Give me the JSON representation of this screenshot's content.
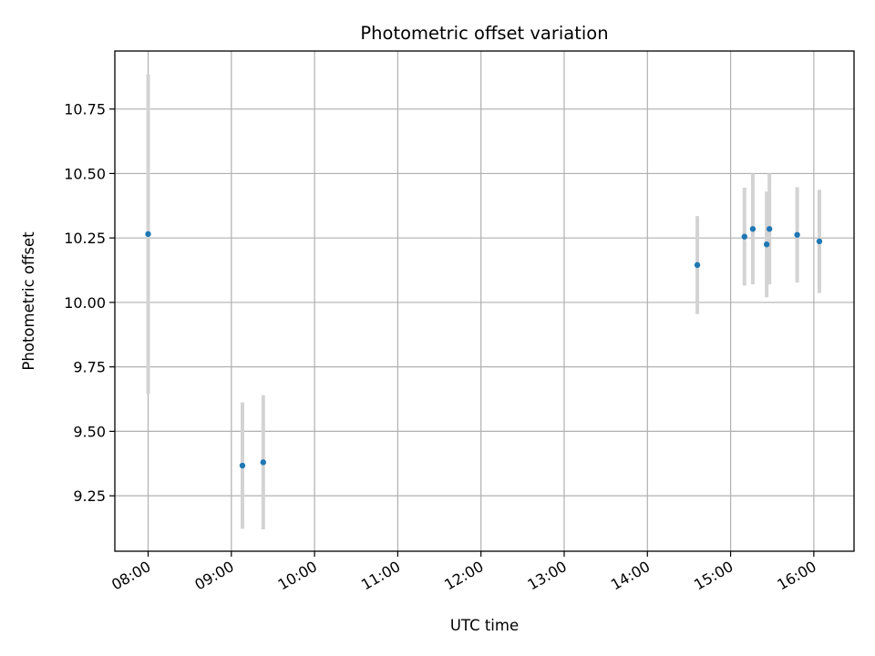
{
  "chart_data": {
    "type": "scatter",
    "title": "Photometric offset variation",
    "xlabel": "UTC time",
    "ylabel": "Photometric offset",
    "x_axis_type": "time",
    "xlim": [
      "07:36",
      "16:29"
    ],
    "ylim": [
      9.035,
      10.975
    ],
    "x_ticks": [
      "08:00",
      "09:00",
      "10:00",
      "11:00",
      "12:00",
      "13:00",
      "14:00",
      "15:00",
      "16:00"
    ],
    "y_ticks": [
      "9.25",
      "9.50",
      "9.75",
      "10.00",
      "10.25",
      "10.50",
      "10.75"
    ],
    "grid": true,
    "marker_color": "#1f77b4",
    "errorbar_color": "#d3d3d3",
    "points": [
      {
        "x": "08:00",
        "y": 10.265,
        "err": 0.62
      },
      {
        "x": "09:08",
        "y": 9.367,
        "err": 0.245
      },
      {
        "x": "09:23",
        "y": 9.38,
        "err": 0.26
      },
      {
        "x": "14:36",
        "y": 10.145,
        "err": 0.19
      },
      {
        "x": "15:10",
        "y": 10.255,
        "err": 0.19
      },
      {
        "x": "15:16",
        "y": 10.285,
        "err": 0.215
      },
      {
        "x": "15:26",
        "y": 10.225,
        "err": 0.205
      },
      {
        "x": "15:28",
        "y": 10.285,
        "err": 0.215
      },
      {
        "x": "15:48",
        "y": 10.262,
        "err": 0.185
      },
      {
        "x": "16:04",
        "y": 10.237,
        "err": 0.2
      }
    ]
  }
}
